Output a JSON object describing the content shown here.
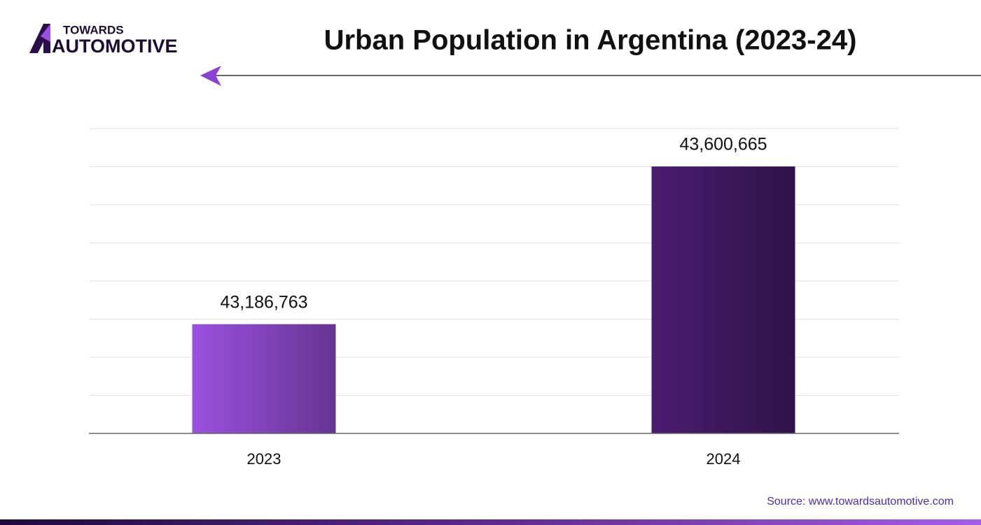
{
  "header": {
    "brand_top": "TOWARDS",
    "brand_bottom": "AUTOMOTIVE"
  },
  "chart_data": {
    "type": "bar",
    "title": "Urban Population in Argentina (2023-24)",
    "categories": [
      "2023",
      "2024"
    ],
    "values": [
      43186763,
      43600665
    ],
    "value_labels": [
      "43,186,763",
      "43,600,665"
    ],
    "colors": [
      "#9b51e0",
      "#4a1c70"
    ],
    "ylim": [
      42900000,
      43700000
    ],
    "yticks": [
      42900000,
      43000000,
      43100000,
      43200000,
      43300000,
      43400000,
      43500000,
      43600000,
      43700000
    ],
    "grid": true
  },
  "footer": {
    "source": "Source: www.towardsautomotive.com"
  }
}
